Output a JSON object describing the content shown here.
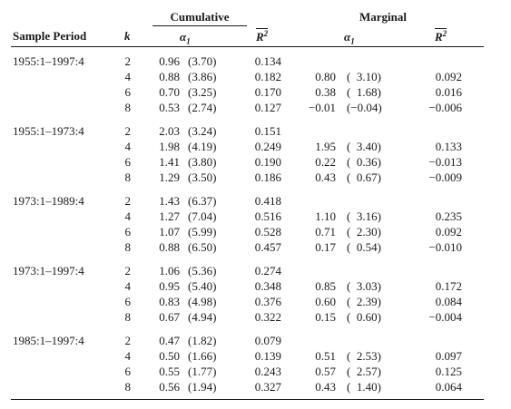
{
  "header": {
    "cumulative": "Cumulative",
    "marginal": "Marginal",
    "sample_period": "Sample Period",
    "k": "k",
    "alpha": "α",
    "alpha_sub": "1",
    "r": "R",
    "r_sup": "2"
  },
  "groups": [
    {
      "period": "1955:1–1997:4",
      "rows": [
        {
          "k": "2",
          "cum_a": "0.96",
          "cum_t": "(3.70)",
          "cum_r2": "0.134",
          "mar_a": "",
          "mar_t": "",
          "mar_r2": ""
        },
        {
          "k": "4",
          "cum_a": "0.88",
          "cum_t": "(3.86)",
          "cum_r2": "0.182",
          "mar_a": "0.80",
          "mar_t": "(  3.10)",
          "mar_r2": "0.092"
        },
        {
          "k": "6",
          "cum_a": "0.70",
          "cum_t": "(3.25)",
          "cum_r2": "0.170",
          "mar_a": "0.38",
          "mar_t": "(  1.68)",
          "mar_r2": "0.016"
        },
        {
          "k": "8",
          "cum_a": "0.53",
          "cum_t": "(2.74)",
          "cum_r2": "0.127",
          "mar_a": "−0.01",
          "mar_t": "(−0.04)",
          "mar_r2": "−0.006"
        }
      ]
    },
    {
      "period": "1955:1–1973:4",
      "rows": [
        {
          "k": "2",
          "cum_a": "2.03",
          "cum_t": "(3.24)",
          "cum_r2": "0.151",
          "mar_a": "",
          "mar_t": "",
          "mar_r2": ""
        },
        {
          "k": "4",
          "cum_a": "1.98",
          "cum_t": "(4.19)",
          "cum_r2": "0.249",
          "mar_a": "1.95",
          "mar_t": "(  3.40)",
          "mar_r2": "0.133"
        },
        {
          "k": "6",
          "cum_a": "1.41",
          "cum_t": "(3.80)",
          "cum_r2": "0.190",
          "mar_a": "0.22",
          "mar_t": "(  0.36)",
          "mar_r2": "−0.013"
        },
        {
          "k": "8",
          "cum_a": "1.29",
          "cum_t": "(3.50)",
          "cum_r2": "0.186",
          "mar_a": "0.43",
          "mar_t": "(  0.67)",
          "mar_r2": "−0.009"
        }
      ]
    },
    {
      "period": "1973:1–1989:4",
      "rows": [
        {
          "k": "2",
          "cum_a": "1.43",
          "cum_t": "(6.37)",
          "cum_r2": "0.418",
          "mar_a": "",
          "mar_t": "",
          "mar_r2": ""
        },
        {
          "k": "4",
          "cum_a": "1.27",
          "cum_t": "(7.04)",
          "cum_r2": "0.516",
          "mar_a": "1.10",
          "mar_t": "(  3.16)",
          "mar_r2": "0.235"
        },
        {
          "k": "6",
          "cum_a": "1.07",
          "cum_t": "(5.99)",
          "cum_r2": "0.528",
          "mar_a": "0.71",
          "mar_t": "(  2.30)",
          "mar_r2": "0.092"
        },
        {
          "k": "8",
          "cum_a": "0.88",
          "cum_t": "(6.50)",
          "cum_r2": "0.457",
          "mar_a": "0.17",
          "mar_t": "(  0.54)",
          "mar_r2": "−0.010"
        }
      ]
    },
    {
      "period": "1973:1–1997:4",
      "rows": [
        {
          "k": "2",
          "cum_a": "1.06",
          "cum_t": "(5.36)",
          "cum_r2": "0.274",
          "mar_a": "",
          "mar_t": "",
          "mar_r2": ""
        },
        {
          "k": "4",
          "cum_a": "0.95",
          "cum_t": "(5.40)",
          "cum_r2": "0.348",
          "mar_a": "0.85",
          "mar_t": "(  3.03)",
          "mar_r2": "0.172"
        },
        {
          "k": "6",
          "cum_a": "0.83",
          "cum_t": "(4.98)",
          "cum_r2": "0.376",
          "mar_a": "0.60",
          "mar_t": "(  2.39)",
          "mar_r2": "0.084"
        },
        {
          "k": "8",
          "cum_a": "0.67",
          "cum_t": "(4.94)",
          "cum_r2": "0.322",
          "mar_a": "0.15",
          "mar_t": "(  0.60)",
          "mar_r2": "−0.004"
        }
      ]
    },
    {
      "period": "1985:1–1997:4",
      "rows": [
        {
          "k": "2",
          "cum_a": "0.47",
          "cum_t": "(1.82)",
          "cum_r2": "0.079",
          "mar_a": "",
          "mar_t": "",
          "mar_r2": ""
        },
        {
          "k": "4",
          "cum_a": "0.50",
          "cum_t": "(1.66)",
          "cum_r2": "0.139",
          "mar_a": "0.51",
          "mar_t": "(  2.53)",
          "mar_r2": "0.097"
        },
        {
          "k": "6",
          "cum_a": "0.55",
          "cum_t": "(1.77)",
          "cum_r2": "0.243",
          "mar_a": "0.57",
          "mar_t": "(  2.57)",
          "mar_r2": "0.125"
        },
        {
          "k": "8",
          "cum_a": "0.56",
          "cum_t": "(1.94)",
          "cum_r2": "0.327",
          "mar_a": "0.43",
          "mar_t": "(  1.40)",
          "mar_r2": "0.064"
        }
      ]
    }
  ]
}
